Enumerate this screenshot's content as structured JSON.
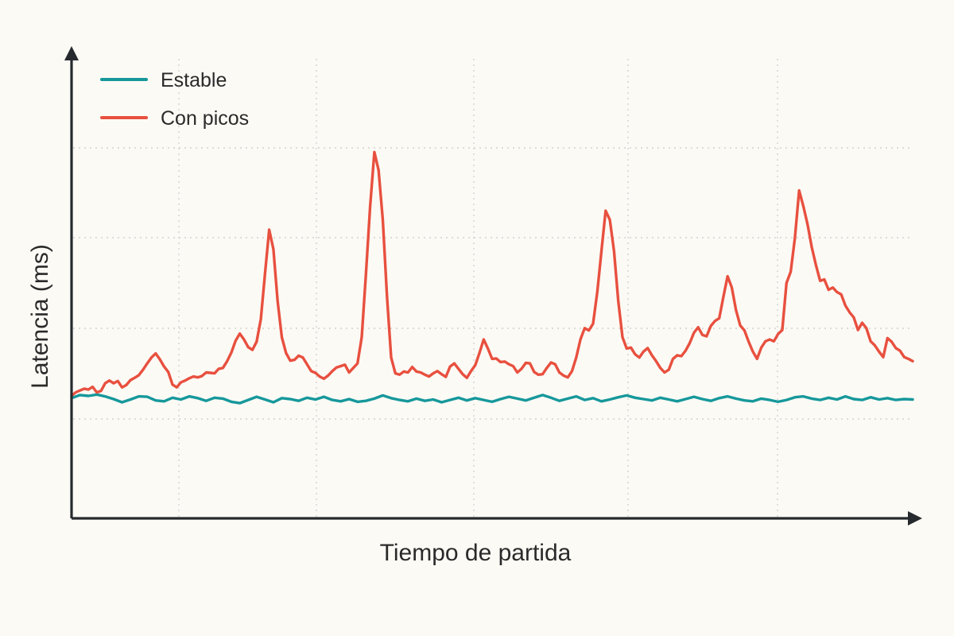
{
  "chart_data": {
    "type": "line",
    "title": "",
    "xlabel": "Tiempo de partida",
    "ylabel": "Latencia (ms)",
    "x_ticks_shown": false,
    "y_ticks_shown": false,
    "grid": true,
    "xlim": [
      0,
      100
    ],
    "ylim": [
      0,
      100
    ],
    "legend_position": "top-left",
    "series": [
      {
        "name": "Estable",
        "color": "#16989b",
        "points": [
          [
            0,
            24.5
          ],
          [
            1,
            25.2
          ],
          [
            2,
            25
          ],
          [
            3,
            25.3
          ],
          [
            4,
            24.9
          ],
          [
            5,
            24.3
          ],
          [
            6,
            23.6
          ],
          [
            7,
            24.2
          ],
          [
            8,
            24.9
          ],
          [
            9,
            24.8
          ],
          [
            10,
            24
          ],
          [
            11,
            23.8
          ],
          [
            12,
            24.6
          ],
          [
            13,
            24.2
          ],
          [
            14,
            24.9
          ],
          [
            15,
            24.5
          ],
          [
            16,
            23.9
          ],
          [
            17,
            24.6
          ],
          [
            18,
            24.4
          ],
          [
            19,
            23.7
          ],
          [
            20,
            23.4
          ],
          [
            21,
            24.1
          ],
          [
            22,
            24.8
          ],
          [
            23,
            24.2
          ],
          [
            24,
            23.6
          ],
          [
            25,
            24.5
          ],
          [
            26,
            24.3
          ],
          [
            27,
            23.9
          ],
          [
            28,
            24.6
          ],
          [
            29,
            24.2
          ],
          [
            30,
            24.8
          ],
          [
            31,
            24.1
          ],
          [
            32,
            23.8
          ],
          [
            33,
            24.3
          ],
          [
            34,
            23.7
          ],
          [
            35,
            23.9
          ],
          [
            36,
            24.4
          ],
          [
            37,
            25.1
          ],
          [
            38,
            24.5
          ],
          [
            39,
            24.1
          ],
          [
            40,
            23.8
          ],
          [
            41,
            24.4
          ],
          [
            42,
            23.9
          ],
          [
            43,
            24.2
          ],
          [
            44,
            23.6
          ],
          [
            45,
            24.1
          ],
          [
            46,
            24.6
          ],
          [
            47,
            24
          ],
          [
            48,
            24.5
          ],
          [
            49,
            24.1
          ],
          [
            50,
            23.7
          ],
          [
            51,
            24.3
          ],
          [
            52,
            24.8
          ],
          [
            53,
            24.4
          ],
          [
            54,
            24
          ],
          [
            55,
            24.6
          ],
          [
            56,
            25.2
          ],
          [
            57,
            24.6
          ],
          [
            58,
            23.9
          ],
          [
            59,
            24.4
          ],
          [
            60,
            24.9
          ],
          [
            61,
            24.1
          ],
          [
            62,
            24.5
          ],
          [
            63,
            23.8
          ],
          [
            64,
            24.2
          ],
          [
            65,
            24.7
          ],
          [
            66,
            25.1
          ],
          [
            67,
            24.6
          ],
          [
            68,
            24.3
          ],
          [
            69,
            24
          ],
          [
            70,
            24.6
          ],
          [
            71,
            24.2
          ],
          [
            72,
            23.8
          ],
          [
            73,
            24.3
          ],
          [
            74,
            24.8
          ],
          [
            75,
            24.3
          ],
          [
            76,
            23.9
          ],
          [
            77,
            24.5
          ],
          [
            78,
            24.9
          ],
          [
            79,
            24.4
          ],
          [
            80,
            24
          ],
          [
            81,
            23.8
          ],
          [
            82,
            24.4
          ],
          [
            83,
            24.1
          ],
          [
            84,
            23.7
          ],
          [
            85,
            24.1
          ],
          [
            86,
            24.7
          ],
          [
            87,
            24.9
          ],
          [
            88,
            24.4
          ],
          [
            89,
            24.1
          ],
          [
            90,
            24.6
          ],
          [
            91,
            24.2
          ],
          [
            92,
            24.9
          ],
          [
            93,
            24.3
          ],
          [
            94,
            24.1
          ],
          [
            95,
            24.7
          ],
          [
            96,
            24.2
          ],
          [
            97,
            24.5
          ],
          [
            98,
            24.1
          ],
          [
            99,
            24.3
          ],
          [
            100,
            24.2
          ]
        ]
      },
      {
        "name": "Con picos",
        "color": "#e8503f",
        "points": [
          [
            0,
            25
          ],
          [
            0.5,
            25.8
          ],
          [
            1,
            26.2
          ],
          [
            1.5,
            26.6
          ],
          [
            2,
            26.4
          ],
          [
            2.5,
            27
          ],
          [
            3,
            25.8
          ],
          [
            3.5,
            26.1
          ],
          [
            4,
            27.8
          ],
          [
            4.5,
            28.4
          ],
          [
            5,
            27.8
          ],
          [
            5.5,
            28.3
          ],
          [
            6,
            26.9
          ],
          [
            6.5,
            27.4
          ],
          [
            7,
            28.5
          ],
          [
            7.5,
            29
          ],
          [
            8,
            29.6
          ],
          [
            8.5,
            30.8
          ],
          [
            9,
            32.2
          ],
          [
            9.5,
            33.5
          ],
          [
            10,
            34.4
          ],
          [
            10.5,
            33.1
          ],
          [
            11,
            31.5
          ],
          [
            11.5,
            30.3
          ],
          [
            12,
            27.5
          ],
          [
            12.5,
            26.9
          ],
          [
            13,
            28
          ],
          [
            13.5,
            28.4
          ],
          [
            14,
            28.9
          ],
          [
            14.5,
            29.3
          ],
          [
            15,
            29.1
          ],
          [
            15.5,
            29.4
          ],
          [
            16,
            30.2
          ],
          [
            16.5,
            30.1
          ],
          [
            17,
            30
          ],
          [
            17.5,
            31
          ],
          [
            18,
            31.2
          ],
          [
            18.5,
            32.7
          ],
          [
            19,
            34.6
          ],
          [
            19.5,
            37.2
          ],
          [
            20,
            38.8
          ],
          [
            20.5,
            37.5
          ],
          [
            21,
            35.8
          ],
          [
            21.5,
            35.2
          ],
          [
            22,
            37
          ],
          [
            22.5,
            42
          ],
          [
            23,
            52
          ],
          [
            23.5,
            61.8
          ],
          [
            24,
            57.5
          ],
          [
            24.5,
            46
          ],
          [
            25,
            38
          ],
          [
            25.5,
            34.5
          ],
          [
            26,
            32.8
          ],
          [
            26.5,
            33
          ],
          [
            27,
            33.9
          ],
          [
            27.5,
            33.5
          ],
          [
            28,
            32
          ],
          [
            28.5,
            30.5
          ],
          [
            29,
            30.1
          ],
          [
            29.5,
            29.3
          ],
          [
            30,
            28.8
          ],
          [
            30.5,
            29.5
          ],
          [
            31,
            30.5
          ],
          [
            31.5,
            31.3
          ],
          [
            32,
            31.6
          ],
          [
            32.5,
            31.9
          ],
          [
            33,
            30.2
          ],
          [
            33.5,
            31.2
          ],
          [
            34,
            32.2
          ],
          [
            34.5,
            38
          ],
          [
            35,
            52
          ],
          [
            35.5,
            67
          ],
          [
            36,
            79
          ],
          [
            36.5,
            75
          ],
          [
            37,
            64
          ],
          [
            37.5,
            47
          ],
          [
            38,
            33.5
          ],
          [
            38.5,
            30
          ],
          [
            39,
            29.7
          ],
          [
            39.5,
            30.4
          ],
          [
            40,
            30.2
          ],
          [
            40.5,
            31.4
          ],
          [
            41,
            30.4
          ],
          [
            41.5,
            30.2
          ],
          [
            42,
            29.7
          ],
          [
            42.5,
            29.3
          ],
          [
            43,
            30
          ],
          [
            43.5,
            30.5
          ],
          [
            44,
            29.8
          ],
          [
            44.5,
            29.2
          ],
          [
            45,
            31.5
          ],
          [
            45.5,
            32.2
          ],
          [
            46,
            31
          ],
          [
            46.5,
            29.8
          ],
          [
            47,
            29
          ],
          [
            47.5,
            30.5
          ],
          [
            48,
            31.8
          ],
          [
            48.5,
            34.5
          ],
          [
            49,
            37.5
          ],
          [
            49.5,
            35.5
          ],
          [
            50,
            33.2
          ],
          [
            50.5,
            33.3
          ],
          [
            51,
            32.5
          ],
          [
            51.5,
            32.6
          ],
          [
            52,
            32
          ],
          [
            52.5,
            31.6
          ],
          [
            53,
            30.2
          ],
          [
            53.5,
            31
          ],
          [
            54,
            32.3
          ],
          [
            54.5,
            32.2
          ],
          [
            55,
            30.3
          ],
          [
            55.5,
            29.7
          ],
          [
            56,
            29.8
          ],
          [
            56.5,
            31.2
          ],
          [
            57,
            32.4
          ],
          [
            57.5,
            32
          ],
          [
            58,
            30.2
          ],
          [
            58.5,
            29.5
          ],
          [
            59,
            29.1
          ],
          [
            59.5,
            30.5
          ],
          [
            60,
            33.5
          ],
          [
            60.5,
            37.5
          ],
          [
            61,
            40
          ],
          [
            61.5,
            39.5
          ],
          [
            62,
            41
          ],
          [
            62.5,
            48
          ],
          [
            63,
            57
          ],
          [
            63.5,
            66
          ],
          [
            64,
            64
          ],
          [
            64.5,
            57
          ],
          [
            65,
            46
          ],
          [
            65.5,
            38
          ],
          [
            66,
            35.5
          ],
          [
            66.5,
            35.7
          ],
          [
            67,
            34.2
          ],
          [
            67.5,
            33.5
          ],
          [
            68,
            34.8
          ],
          [
            68.5,
            35.6
          ],
          [
            69,
            34
          ],
          [
            69.5,
            32.7
          ],
          [
            70,
            31.2
          ],
          [
            70.5,
            30.2
          ],
          [
            71,
            30.8
          ],
          [
            71.5,
            33.2
          ],
          [
            72,
            34
          ],
          [
            72.5,
            33.8
          ],
          [
            73,
            35
          ],
          [
            73.5,
            36.7
          ],
          [
            74,
            39
          ],
          [
            74.5,
            40.2
          ],
          [
            75,
            38.5
          ],
          [
            75.5,
            38.2
          ],
          [
            76,
            40.5
          ],
          [
            76.5,
            41.6
          ],
          [
            77,
            42.2
          ],
          [
            77.5,
            47
          ],
          [
            78,
            51.5
          ],
          [
            78.5,
            49
          ],
          [
            79,
            44
          ],
          [
            79.5,
            40.6
          ],
          [
            80,
            39.5
          ],
          [
            80.5,
            37
          ],
          [
            81,
            34.8
          ],
          [
            81.5,
            33.2
          ],
          [
            82,
            35.7
          ],
          [
            82.5,
            37.1
          ],
          [
            83,
            37.5
          ],
          [
            83.5,
            37.1
          ],
          [
            84,
            38.7
          ],
          [
            84.5,
            39.6
          ],
          [
            85,
            50
          ],
          [
            85.5,
            52.5
          ],
          [
            86,
            60
          ],
          [
            86.5,
            70.5
          ],
          [
            87,
            67
          ],
          [
            87.5,
            63
          ],
          [
            88,
            58
          ],
          [
            88.5,
            54
          ],
          [
            89,
            50.5
          ],
          [
            89.5,
            50.8
          ],
          [
            90,
            48.5
          ],
          [
            90.5,
            49
          ],
          [
            91,
            48
          ],
          [
            91.5,
            47.5
          ],
          [
            92,
            45
          ],
          [
            92.5,
            43.5
          ],
          [
            93,
            42.4
          ],
          [
            93.5,
            39.6
          ],
          [
            94,
            41.2
          ],
          [
            94.5,
            40
          ],
          [
            95,
            37.1
          ],
          [
            95.5,
            36.2
          ],
          [
            96,
            34.8
          ],
          [
            96.5,
            33.6
          ],
          [
            97,
            37.8
          ],
          [
            97.5,
            37
          ],
          [
            98,
            35.6
          ],
          [
            98.5,
            35
          ],
          [
            99,
            33.6
          ],
          [
            99.5,
            33.2
          ],
          [
            100,
            32.7
          ]
        ]
      }
    ]
  }
}
